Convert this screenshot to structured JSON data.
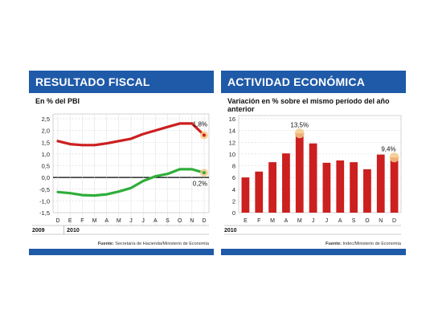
{
  "chart_data": [
    {
      "type": "line",
      "title": "RESULTADO FISCAL",
      "subtitle": "En % del PBI",
      "x": [
        "D",
        "E",
        "F",
        "M",
        "A",
        "M",
        "J",
        "J",
        "A",
        "S",
        "O",
        "N",
        "D"
      ],
      "year_labels": [
        "2009",
        "2010"
      ],
      "ylim": [
        -1.5,
        2.5
      ],
      "yticks": [
        "2,5",
        "2,0",
        "1,5",
        "1,0",
        "0,5",
        "0,0",
        "-0,5",
        "-1,0",
        "-1,5"
      ],
      "ytick_values": [
        2.5,
        2.0,
        1.5,
        1.0,
        0.5,
        0.0,
        -0.5,
        -1.0,
        -1.5
      ],
      "grid": "horizontal",
      "series": [
        {
          "values": [
            1.55,
            1.42,
            1.38,
            1.38,
            1.45,
            1.55,
            1.65,
            1.85,
            2.0,
            2.15,
            2.3,
            2.3,
            1.8
          ],
          "color": "#cc1f1f"
        },
        {
          "values": [
            -0.62,
            -0.67,
            -0.75,
            -0.77,
            -0.72,
            -0.6,
            -0.45,
            -0.15,
            0.05,
            0.15,
            0.35,
            0.35,
            0.2
          ],
          "color": "#2fae3a"
        }
      ],
      "annotations": [
        "1,8%",
        "0,2%"
      ],
      "source_label": "Fuente:",
      "source_text": "Secretaría de Hacienda/Ministerio de Economía"
    },
    {
      "type": "bar",
      "title": "ACTIVIDAD ECONÓMICA",
      "subtitle": "Variación en % sobre el mismo período del año anterior",
      "categories": [
        "E",
        "F",
        "M",
        "A",
        "M",
        "J",
        "J",
        "A",
        "S",
        "O",
        "N",
        "D"
      ],
      "year_labels": [
        "2010"
      ],
      "values": [
        6.0,
        7.0,
        8.6,
        10.1,
        13.5,
        11.8,
        8.5,
        8.9,
        8.6,
        7.4,
        9.9,
        9.4
      ],
      "ylim": [
        0,
        16
      ],
      "yticks": [
        "16",
        "14",
        "12",
        "10",
        "8",
        "6",
        "4",
        "2",
        "0"
      ],
      "ytick_values": [
        16,
        14,
        12,
        10,
        8,
        6,
        4,
        2,
        0
      ],
      "grid": "horizontal",
      "color": "#cc1f1f",
      "annotations": [
        "13,5%",
        "9,4%"
      ],
      "source_label": "Fuente:",
      "source_text": "Indec/Ministerio de Economía"
    }
  ]
}
